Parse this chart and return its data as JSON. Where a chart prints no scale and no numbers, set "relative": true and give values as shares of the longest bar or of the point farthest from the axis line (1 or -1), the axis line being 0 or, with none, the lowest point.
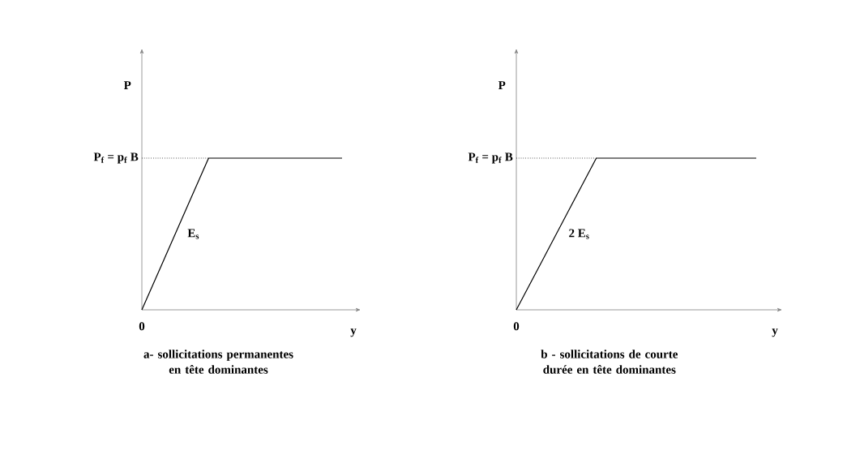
{
  "chart_data": [
    {
      "type": "line",
      "relative": true,
      "title": "a- sollicitations permanentes en tête dominantes",
      "xlabel": "y",
      "ylabel": "P",
      "categories": [
        null,
        null,
        null,
        null,
        null,
        null,
        null,
        null,
        null,
        null
      ],
      "values": [
        0,
        0.333,
        0.667,
        1,
        1,
        1,
        1,
        1,
        1,
        1
      ],
      "color": "#000000",
      "ref_lines": [
        {
          "axis": "y",
          "value": 1,
          "label": "P$_{f}$ = p$_{f}$ B",
          "line_style": "dotted"
        }
      ],
      "annotations": [
        "0",
        "E$_{s}$"
      ]
    },
    {
      "type": "line",
      "relative": true,
      "title": "b - sollicitations de courte durée en tête dominantes",
      "xlabel": "y",
      "ylabel": "P",
      "categories": [
        null,
        null,
        null,
        null,
        null,
        null,
        null,
        null,
        null,
        null
      ],
      "values": [
        0,
        0.333,
        0.667,
        1,
        1,
        1,
        1,
        1,
        1,
        1
      ],
      "color": "#000000",
      "ref_lines": [
        {
          "axis": "y",
          "value": 1,
          "label": "P$_{f}$ = p$_{f}$ B",
          "line_style": "dotted"
        }
      ],
      "annotations": [
        "0",
        "2 E$_{s}$"
      ]
    }
  ]
}
